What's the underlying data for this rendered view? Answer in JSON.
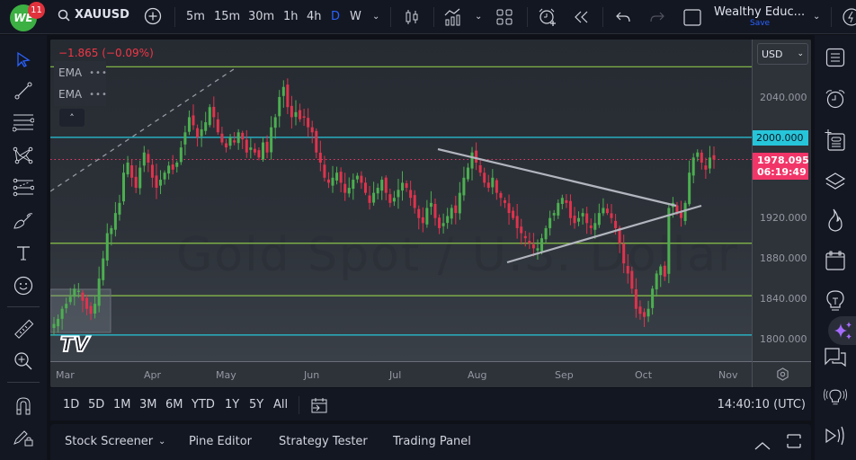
{
  "topbar": {
    "logo_text": "WE",
    "notification_count": "11",
    "symbol": "XAUUSD",
    "timeframes": [
      "5m",
      "15m",
      "30m",
      "1h",
      "4h",
      "D",
      "W"
    ],
    "active_timeframe": "D",
    "layout_name": "Wealthy Educ...",
    "layout_save": "Save"
  },
  "legend": {
    "change": "−1.865 (−0.09%)",
    "indicators": [
      {
        "name": "EMA",
        "menu": "•••"
      },
      {
        "name": "EMA",
        "menu": "•••"
      }
    ],
    "collapse_icon": "˄"
  },
  "watermark": "Gold Spot / U.S. Dollar",
  "price_axis": {
    "currency": "USD",
    "labels": [
      "2040.000",
      "2000.000",
      "1920.000",
      "1880.000",
      "1840.000",
      "1800.000"
    ],
    "horizontal_line_tag": "2000.000",
    "last_price": "1978.095",
    "countdown": "06:19:49",
    "cyan_color": "#26c6da",
    "last_price_color": "#f23568"
  },
  "time_axis": {
    "months": [
      "Mar",
      "Apr",
      "May",
      "Jun",
      "Jul",
      "Aug",
      "Sep",
      "Oct",
      "Nov"
    ]
  },
  "range_bar": {
    "ranges": [
      "1D",
      "5D",
      "1M",
      "3M",
      "6M",
      "YTD",
      "1Y",
      "5Y",
      "All"
    ],
    "clock": "14:40:10 (UTC)"
  },
  "bottom_panel": {
    "tabs": [
      "Stock Screener",
      "Pine Editor",
      "Strategy Tester",
      "Trading Panel"
    ]
  },
  "chart_data": {
    "type": "candlestick",
    "title": "XAUUSD, D (Gold Spot / U.S. Dollar)",
    "xlabel": "",
    "ylabel": "USD",
    "ylim": [
      1785,
      2070
    ],
    "x_ticks": [
      "Mar",
      "Apr",
      "May",
      "Jun",
      "Jul",
      "Aug",
      "Sep",
      "Oct",
      "Nov"
    ],
    "y_ticks": [
      1800,
      1840,
      1880,
      1920,
      2040
    ],
    "last_price": 1978.095,
    "price_change": -1.865,
    "price_change_pct": -0.09,
    "horizontal_levels": [
      {
        "price": 2070,
        "color": "#8bc34a"
      },
      {
        "price": 2000,
        "color": "#26c6da"
      },
      {
        "price": 1895,
        "color": "#8bc34a"
      },
      {
        "price": 1843,
        "color": "#8bc34a"
      },
      {
        "price": 1804,
        "color": "#26c6da"
      }
    ],
    "trendlines": [
      {
        "from": [
          "late Jul",
          1987
        ],
        "to": [
          "mid Oct",
          1932
        ],
        "color": "#b2b5be"
      },
      {
        "from": [
          "mid Aug",
          1877
        ],
        "to": [
          "mid Oct",
          1934
        ],
        "color": "#b2b5be"
      },
      {
        "from": [
          "Mar",
          1940
        ],
        "to": [
          "early May",
          2067
        ],
        "style": "dashed",
        "color": "#9598a1"
      }
    ],
    "approx_close_series": [
      1815,
      1820,
      1830,
      1835,
      1842,
      1850,
      1848,
      1838,
      1830,
      1825,
      1835,
      1860,
      1880,
      1905,
      1910,
      1925,
      1935,
      1965,
      1975,
      1960,
      1950,
      1970,
      1985,
      1975,
      1960,
      1950,
      1958,
      1965,
      1972,
      1968,
      1975,
      1990,
      2005,
      2020,
      2012,
      2000,
      2008,
      2015,
      2030,
      2020,
      2005,
      1995,
      1990,
      2000,
      1995,
      2005,
      1998,
      1985,
      1990,
      1985,
      1980,
      1995,
      1985,
      2010,
      2020,
      2040,
      2050,
      2030,
      2020,
      2025,
      2018,
      2020,
      2010,
      2005,
      1985,
      1975,
      1960,
      1955,
      1960,
      1965,
      1955,
      1945,
      1950,
      1958,
      1962,
      1955,
      1945,
      1935,
      1945,
      1950,
      1958,
      1945,
      1935,
      1940,
      1948,
      1955,
      1950,
      1940,
      1930,
      1920,
      1915,
      1930,
      1935,
      1920,
      1910,
      1915,
      1922,
      1930,
      1925,
      1945,
      1960,
      1970,
      1985,
      1975,
      1965,
      1955,
      1950,
      1960,
      1945,
      1940,
      1935,
      1925,
      1920,
      1910,
      1905,
      1900,
      1895,
      1890,
      1890,
      1900,
      1910,
      1920,
      1925,
      1935,
      1940,
      1935,
      1920,
      1915,
      1920,
      1925,
      1915,
      1910,
      1915,
      1925,
      1930,
      1925,
      1920,
      1910,
      1895,
      1875,
      1865,
      1850,
      1830,
      1825,
      1822,
      1830,
      1850,
      1865,
      1872,
      1862,
      1930,
      1935,
      1925,
      1920,
      1935,
      1965,
      1980,
      1985,
      1975,
      1968,
      1980,
      1978
    ]
  }
}
